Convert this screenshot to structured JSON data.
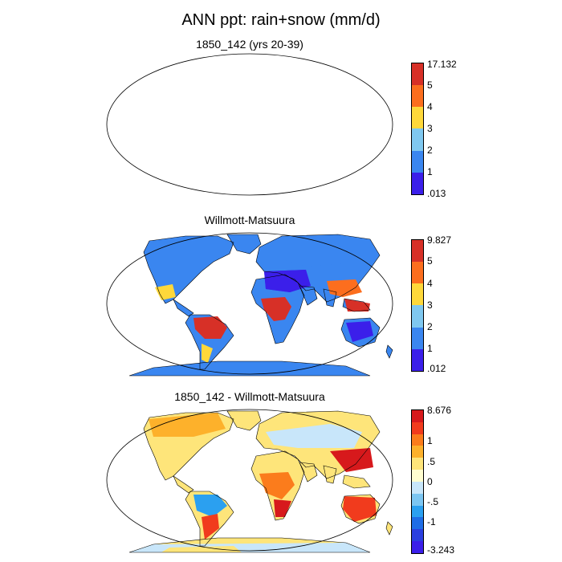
{
  "title": "ANN ppt: rain+snow (mm/d)",
  "panels": [
    {
      "title": "1850_142 (yrs 20-39)",
      "colorbar_labels": [
        "17.132",
        "5",
        "4",
        "3",
        "2",
        "1",
        ".013"
      ],
      "colorbar_colors": [
        "#d73027",
        "#fc6e1e",
        "#fed83a",
        "#7fc8f0",
        "#3a86f0",
        "#3b1fea"
      ]
    },
    {
      "title": "Willmott-Matsuura",
      "colorbar_labels": [
        "9.827",
        "5",
        "4",
        "3",
        "2",
        "1",
        ".012"
      ],
      "colorbar_colors": [
        "#d73027",
        "#fc6e1e",
        "#fed83a",
        "#7fc8f0",
        "#3a86f0",
        "#3b1fea"
      ]
    },
    {
      "title": "1850_142 - Willmott-Matsuura",
      "colorbar_labels": [
        "8.676",
        "1",
        ".5",
        "0",
        "-.5",
        "-1",
        "-3.243"
      ],
      "colorbar_colors": [
        "#d7191c",
        "#f13b1d",
        "#fb7c1c",
        "#fdb12b",
        "#fee57a",
        "#fffdd0",
        "#c8e6fa",
        "#7cc6f2",
        "#2ba0f0",
        "#1f6de6",
        "#2a3fe0",
        "#3b1fea"
      ]
    }
  ]
}
